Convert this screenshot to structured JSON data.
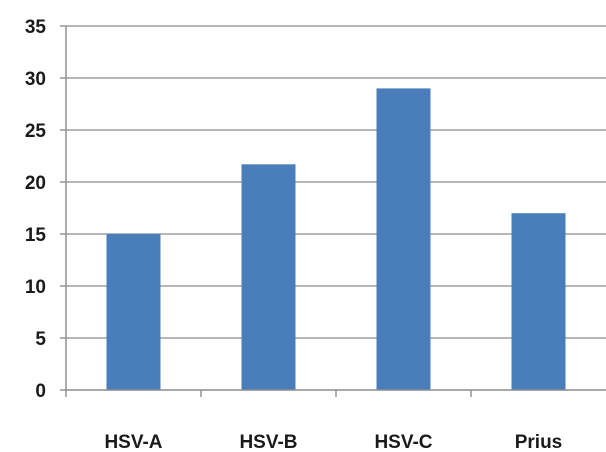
{
  "chart_data": {
    "type": "bar",
    "title": "",
    "xlabel": "",
    "ylabel": "",
    "categories": [
      "HSV-A",
      "HSV-B",
      "HSV-C",
      "Prius"
    ],
    "values": [
      15,
      21.7,
      29,
      17
    ],
    "ylim": [
      0,
      35
    ],
    "yticks": [
      "0",
      "5",
      "10",
      "15",
      "20",
      "25",
      "30",
      "35"
    ],
    "grid": true,
    "legend": "none",
    "bar_color": "#4a7ebb"
  }
}
